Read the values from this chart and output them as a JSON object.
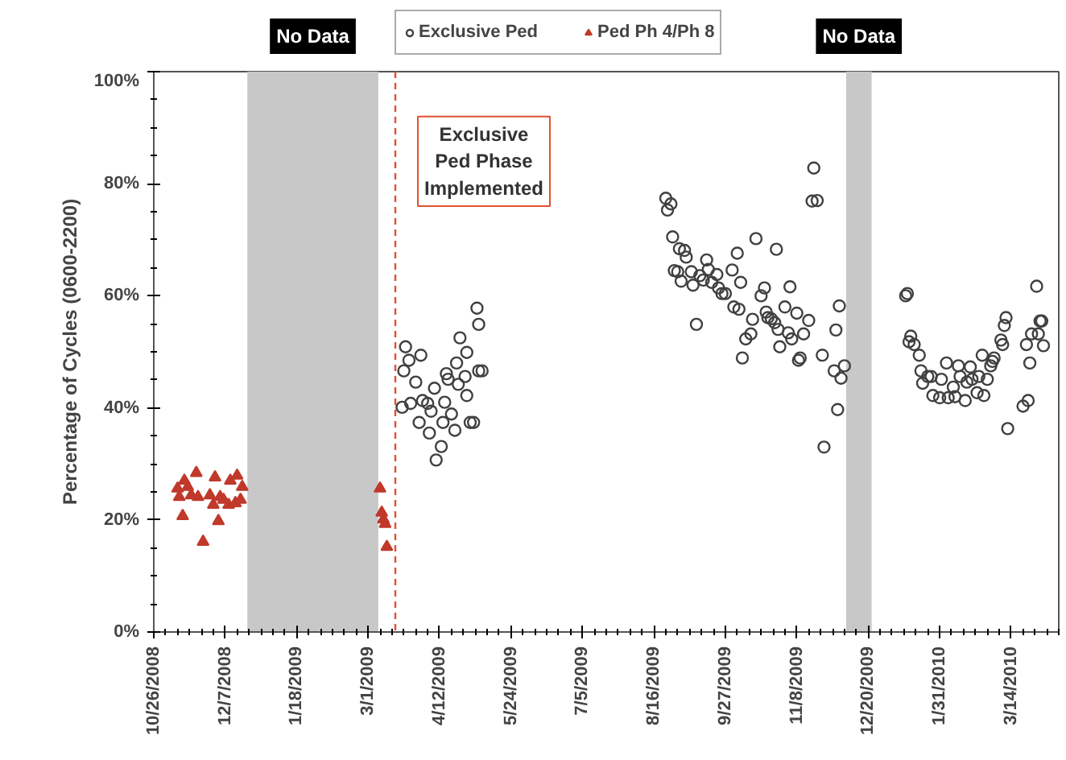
{
  "chart_data": {
    "type": "scatter",
    "ylabel": "Percentage of Cycles (0600-2200)",
    "xlim": [
      "2008-10-26",
      "2010-04-11"
    ],
    "xticks": [
      {
        "value": "2008-10-26",
        "label": "10/26/2008"
      },
      {
        "value": "2008-12-07",
        "label": "12/7/2008"
      },
      {
        "value": "2009-01-18",
        "label": "1/18/2009"
      },
      {
        "value": "2009-03-01",
        "label": "3/1/2009"
      },
      {
        "value": "2009-04-12",
        "label": "4/12/2009"
      },
      {
        "value": "2009-05-24",
        "label": "5/24/2009"
      },
      {
        "value": "2009-07-05",
        "label": "7/5/2009"
      },
      {
        "value": "2009-08-16",
        "label": "8/16/2009"
      },
      {
        "value": "2009-09-27",
        "label": "9/27/2009"
      },
      {
        "value": "2009-11-08",
        "label": "11/8/2009"
      },
      {
        "value": "2009-12-20",
        "label": "12/20/2009"
      },
      {
        "value": "2010-01-31",
        "label": "1/31/2010"
      },
      {
        "value": "2010-03-14",
        "label": "3/14/2010"
      }
    ],
    "ylim": [
      0,
      100
    ],
    "yticks": [
      {
        "value": 0,
        "label": "0%"
      },
      {
        "value": 20,
        "label": "20%"
      },
      {
        "value": 40,
        "label": "40%"
      },
      {
        "value": 60,
        "label": "60%"
      },
      {
        "value": 80,
        "label": "80%"
      },
      {
        "value": 100,
        "label": "100%"
      }
    ],
    "grid": false,
    "legend": "top",
    "bands": [
      {
        "axis": "x",
        "from": "2008-12-20",
        "to": "2009-03-07",
        "label": "No Data",
        "color": "#c8c8c8"
      },
      {
        "axis": "x",
        "from": "2009-12-07",
        "to": "2009-12-22",
        "label": "No Data",
        "color": "#c8c8c8"
      }
    ],
    "ref_lines": [
      {
        "axis": "x",
        "value": "2009-03-17",
        "label": "Exclusive Ped Phase Implemented",
        "color": "#e05030",
        "line_style": "dashed"
      }
    ],
    "series": [
      {
        "name": "Exclusive Ped",
        "color": "#404040",
        "marker": "circle",
        "x": [
          "2009-03-22",
          "2009-03-23",
          "2009-03-25",
          "2009-03-29",
          "2009-04-01",
          "2009-03-21",
          "2009-03-26",
          "2009-03-31",
          "2009-04-02",
          "2009-04-05",
          "2009-04-07",
          "2009-04-09",
          "2009-04-10",
          "2009-04-06",
          "2009-04-13",
          "2009-04-14",
          "2009-04-15",
          "2009-04-16",
          "2009-04-17",
          "2009-04-19",
          "2009-04-21",
          "2009-04-22",
          "2009-04-23",
          "2009-04-24",
          "2009-04-27",
          "2009-04-28",
          "2009-04-30",
          "2009-05-02",
          "2009-05-04",
          "2009-05-05",
          "2009-05-05",
          "2009-05-07",
          "2009-04-28",
          "2009-08-23",
          "2009-08-24",
          "2009-08-26",
          "2009-08-27",
          "2009-08-31",
          "2009-09-03",
          "2009-09-04",
          "2009-08-28",
          "2009-08-30",
          "2009-09-01",
          "2009-09-07",
          "2009-09-08",
          "2009-09-10",
          "2009-09-12",
          "2009-09-14",
          "2009-09-16",
          "2009-09-17",
          "2009-09-19",
          "2009-09-22",
          "2009-09-23",
          "2009-09-25",
          "2009-09-27",
          "2009-10-01",
          "2009-10-02",
          "2009-10-04",
          "2009-10-05",
          "2009-10-06",
          "2009-10-07",
          "2009-10-09",
          "2009-10-12",
          "2009-10-13",
          "2009-10-15",
          "2009-10-18",
          "2009-10-20",
          "2009-10-21",
          "2009-10-22",
          "2009-10-24",
          "2009-10-26",
          "2009-10-27",
          "2009-10-28",
          "2009-10-29",
          "2009-11-01",
          "2009-11-03",
          "2009-11-04",
          "2009-11-05",
          "2009-11-08",
          "2009-11-09",
          "2009-11-10",
          "2009-11-12",
          "2009-11-15",
          "2009-11-17",
          "2009-11-18",
          "2009-11-20",
          "2009-11-23",
          "2009-11-24",
          "2009-11-30",
          "2009-12-01",
          "2009-12-02",
          "2009-12-03",
          "2009-12-04",
          "2009-12-06",
          "2010-01-11",
          "2010-01-12",
          "2010-01-13",
          "2010-01-14",
          "2010-01-16",
          "2010-01-19",
          "2010-01-20",
          "2010-01-21",
          "2010-01-24",
          "2010-01-26",
          "2010-01-27",
          "2010-01-31",
          "2010-02-01",
          "2010-02-04",
          "2010-02-05",
          "2010-02-08",
          "2010-02-09",
          "2010-02-11",
          "2010-02-12",
          "2010-02-15",
          "2010-02-16",
          "2010-02-18",
          "2010-02-19",
          "2010-02-22",
          "2010-02-23",
          "2010-02-25",
          "2010-02-26",
          "2010-02-28",
          "2010-03-02",
          "2010-03-03",
          "2010-03-04",
          "2010-03-08",
          "2010-03-09",
          "2010-03-10",
          "2010-03-11",
          "2010-03-12",
          "2010-03-21",
          "2010-03-24",
          "2010-03-23",
          "2010-03-25",
          "2010-03-26",
          "2010-03-29",
          "2010-03-30",
          "2010-03-31",
          "2010-04-01",
          "2010-04-02"
        ],
        "values": [
          46.6,
          50.9,
          48.5,
          44.6,
          49.4,
          40.1,
          40.8,
          37.4,
          41.3,
          40.8,
          39.4,
          43.5,
          30.7,
          35.5,
          33.1,
          37.4,
          41,
          46.1,
          45.1,
          38.9,
          36,
          48,
          44.2,
          52.5,
          45.6,
          42.2,
          37.4,
          37.4,
          57.8,
          54.9,
          46.6,
          46.6,
          49.9,
          77.4,
          75.3,
          76.4,
          70.5,
          68.4,
          68.1,
          66.9,
          64.5,
          64.3,
          62.6,
          64.3,
          61.9,
          54.9,
          63.6,
          62.8,
          66.4,
          64.7,
          62.4,
          63.8,
          61.4,
          60.4,
          60.4,
          64.6,
          58,
          67.6,
          57.6,
          62.4,
          48.9,
          52.3,
          53.2,
          55.8,
          70.2,
          60,
          61.4,
          57.1,
          56.1,
          55.9,
          55.2,
          68.3,
          54,
          50.9,
          58,
          53.4,
          61.6,
          52.3,
          56.9,
          48.5,
          48.9,
          53.2,
          55.6,
          76.9,
          82.8,
          77,
          49.4,
          33,
          46.6,
          53.9,
          39.7,
          58.2,
          45.3,
          47.5,
          60,
          60.4,
          51.8,
          52.8,
          51.3,
          49.4,
          46.6,
          44.4,
          45.6,
          45.6,
          42.2,
          41.8,
          45.1,
          48,
          41.8,
          43.7,
          42,
          47.5,
          45.6,
          41.3,
          44.6,
          47.3,
          45.1,
          42.7,
          45.6,
          49.4,
          42.2,
          45.1,
          47.5,
          48.3,
          48.9,
          52.1,
          51.3,
          54.7,
          56.1,
          36.3,
          40.3,
          41.3,
          51.3,
          48,
          53.2,
          61.7,
          53.2,
          55.5,
          55.5,
          51.1
        ]
      },
      {
        "name": "Ped Ph 4/Ph 8",
        "color": "#c0392b",
        "marker": "triangle",
        "x": [
          "2008-11-09",
          "2008-11-10",
          "2008-11-12",
          "2008-11-13",
          "2008-11-15",
          "2008-11-17",
          "2008-11-20",
          "2008-11-21",
          "2008-11-24",
          "2008-11-28",
          "2008-11-30",
          "2008-12-01",
          "2008-12-03",
          "2008-12-04",
          "2008-12-06",
          "2008-12-09",
          "2008-12-10",
          "2008-12-13",
          "2008-12-14",
          "2008-12-16",
          "2008-12-17",
          "2009-03-08",
          "2009-03-09",
          "2009-03-10",
          "2009-03-11",
          "2009-03-12"
        ],
        "values": [
          25.6,
          24.1,
          20.7,
          27,
          25.9,
          24.4,
          28.4,
          24.1,
          16.1,
          24.4,
          22.7,
          27.6,
          19.8,
          24.1,
          23.6,
          22.7,
          27,
          23,
          27.9,
          23.6,
          25.9,
          25.6,
          21.3,
          20.1,
          19.3,
          15.2
        ]
      }
    ]
  }
}
